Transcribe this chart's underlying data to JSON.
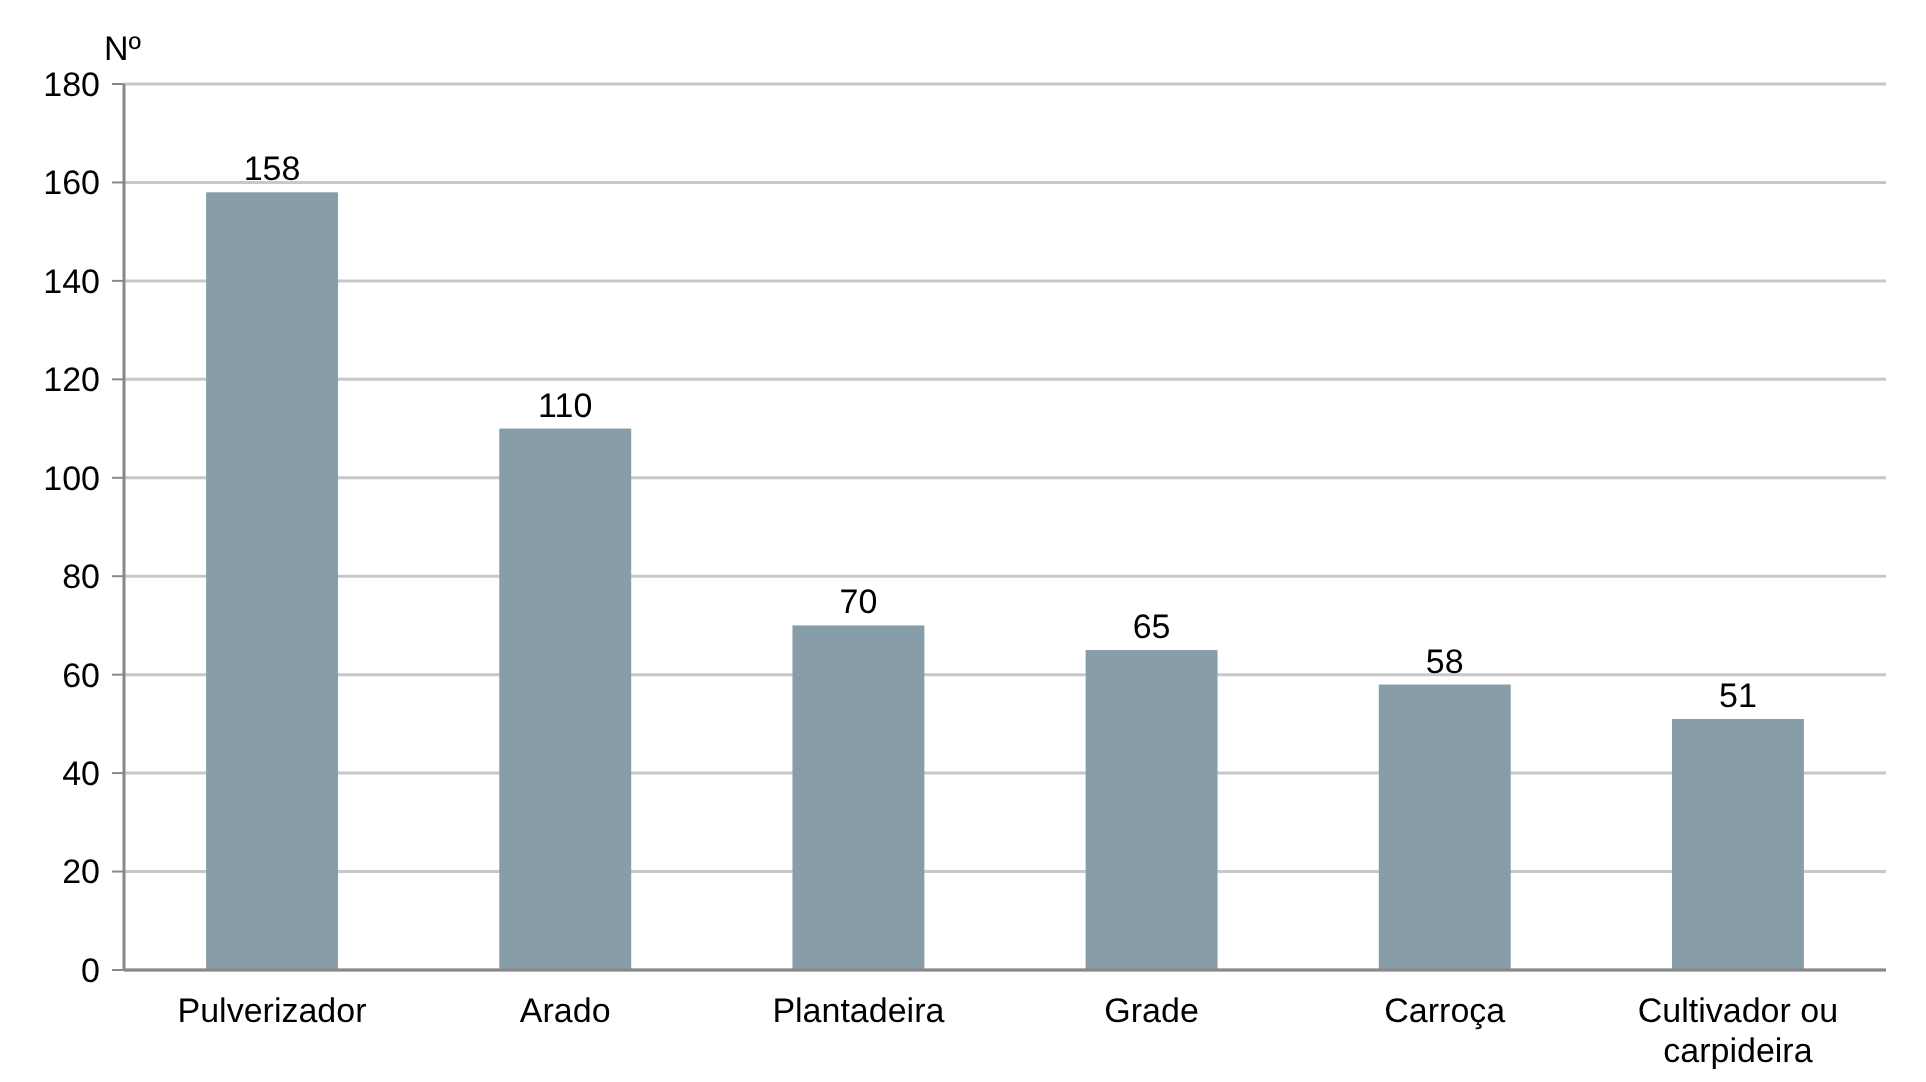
{
  "chart_data": {
    "type": "bar",
    "ylabel": "Nº",
    "categories": [
      "Pulverizador",
      "Arado",
      "Plantadeira",
      "Grade",
      "Carroça",
      "Cultivador ou carpideira"
    ],
    "values": [
      158,
      110,
      70,
      65,
      58,
      51
    ],
    "color": "#879ea8",
    "ylim": [
      0,
      180
    ],
    "yticks": [
      0,
      20,
      40,
      60,
      80,
      100,
      120,
      140,
      160,
      180
    ],
    "grid": "y",
    "data_labels": true
  }
}
